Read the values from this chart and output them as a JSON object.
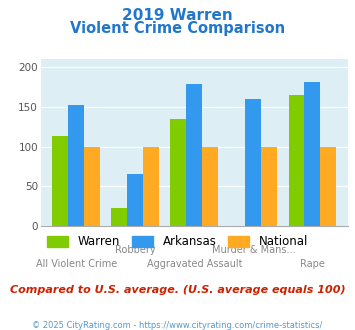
{
  "title_line1": "2019 Warren",
  "title_line2": "Violent Crime Comparison",
  "colors": {
    "Warren": "#80cc00",
    "Arkansas": "#3399ee",
    "National": "#ffaa22"
  },
  "ylim": [
    0,
    210
  ],
  "yticks": [
    0,
    50,
    100,
    150,
    200
  ],
  "plot_bg": "#ddeef5",
  "title_color": "#2277cc",
  "footer_text": "Compared to U.S. average. (U.S. average equals 100)",
  "credit_text": "© 2025 CityRating.com - https://www.cityrating.com/crime-statistics/",
  "footer_color": "#cc2200",
  "credit_color": "#5599cc",
  "warren_vals": [
    113,
    23,
    135,
    0,
    165
  ],
  "arkansas_vals": [
    153,
    65,
    179,
    160,
    181
  ],
  "national_vals": [
    100,
    100,
    100,
    100,
    100
  ],
  "top_labels": {
    "1": "Robbery",
    "3": "Murder & Mans..."
  },
  "bottom_labels": {
    "0": "All Violent Crime",
    "2": "Aggravated Assault",
    "4": "Rape"
  }
}
